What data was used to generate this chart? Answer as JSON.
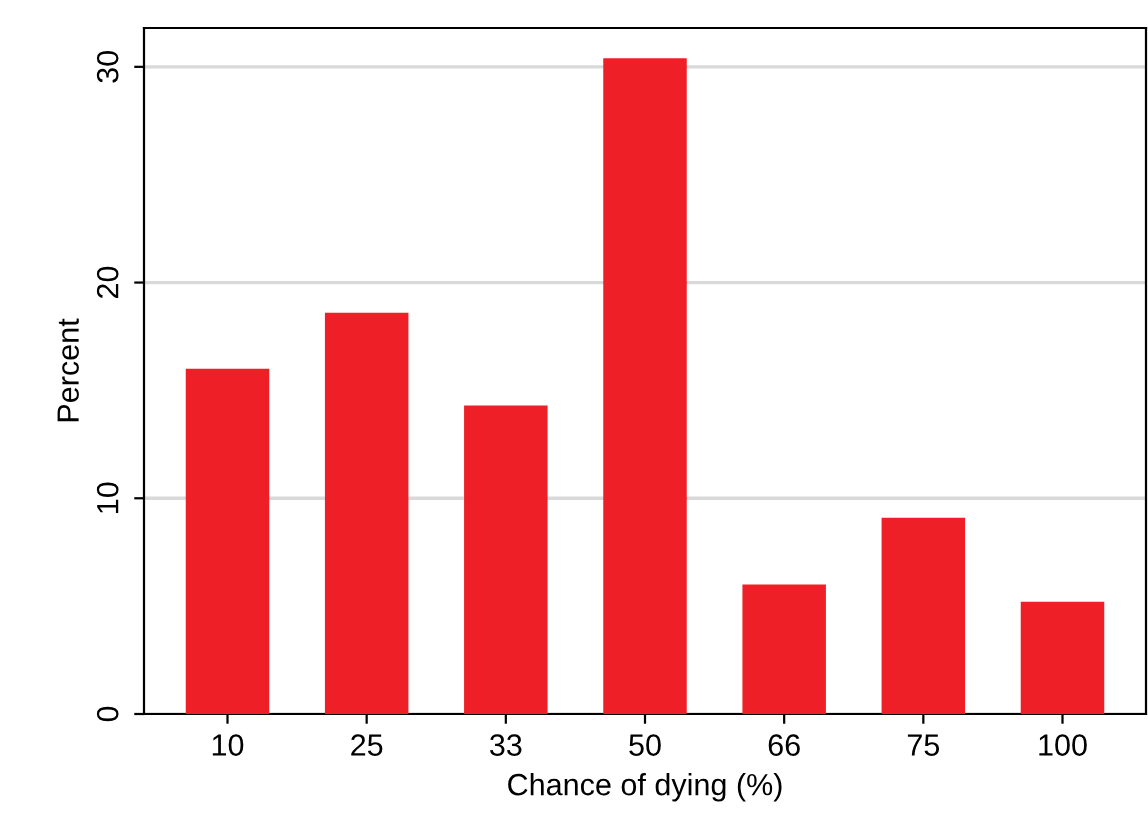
{
  "chart_data": {
    "type": "bar",
    "xlabel": "Chance of dying (%)",
    "ylabel": "Percent",
    "categories": [
      "10",
      "25",
      "33",
      "50",
      "66",
      "75",
      "100"
    ],
    "values": [
      16.0,
      18.6,
      14.3,
      30.4,
      6.0,
      9.1,
      5.2
    ],
    "color": "#ee1f26",
    "ylim": [
      0,
      31.8
    ],
    "yticks": [
      0,
      10,
      20,
      30
    ],
    "grid": "y"
  }
}
